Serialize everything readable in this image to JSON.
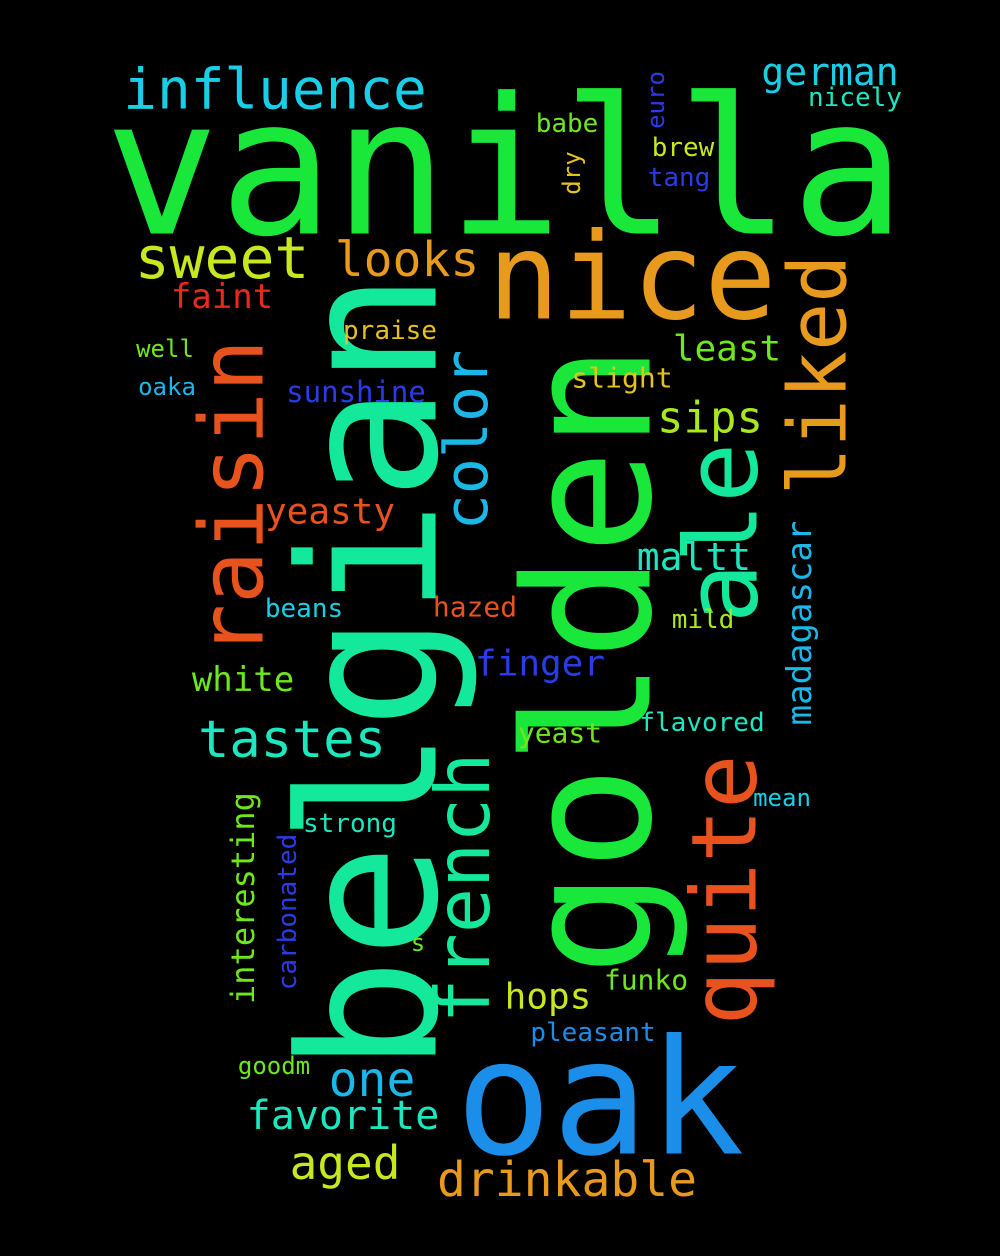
{
  "palette": {
    "green": "#19e83a",
    "mint": "#14e89a",
    "orange": "#e89a1c",
    "red_orange": "#e8521c",
    "blue": "#1a8ee8",
    "cyan": "#19cfe8",
    "sky": "#1ab8e8",
    "lime": "#a8e81c",
    "yellow_green": "#c6e81c",
    "yellow": "#e8c21c",
    "royal": "#2a3be8",
    "red": "#e82a1c",
    "teal": "#1ce8c0",
    "light_green": "#6ee81c"
  },
  "words": [
    {
      "text": "vanilla",
      "color": "green"
    },
    {
      "text": "belgian",
      "color": "mint"
    },
    {
      "text": "golden",
      "color": "green"
    },
    {
      "text": "oak",
      "color": "blue"
    },
    {
      "text": "nice",
      "color": "orange"
    },
    {
      "text": "ale",
      "color": "mint"
    },
    {
      "text": "quite",
      "color": "red_orange"
    },
    {
      "text": "raisin",
      "color": "red_orange"
    },
    {
      "text": "liked",
      "color": "orange"
    },
    {
      "text": "french",
      "color": "mint"
    },
    {
      "text": "color",
      "color": "sky"
    },
    {
      "text": "influence",
      "color": "cyan"
    },
    {
      "text": "sweet",
      "color": "yellow_green"
    },
    {
      "text": "looks",
      "color": "orange"
    },
    {
      "text": "tastes",
      "color": "teal"
    },
    {
      "text": "drinkable",
      "color": "orange"
    },
    {
      "text": "one",
      "color": "sky"
    },
    {
      "text": "aged",
      "color": "yellow_green"
    },
    {
      "text": "favorite",
      "color": "teal"
    },
    {
      "text": "sips",
      "color": "lime"
    },
    {
      "text": "german",
      "color": "cyan"
    },
    {
      "text": "maltt",
      "color": "teal"
    },
    {
      "text": "madagascar",
      "color": "sky"
    },
    {
      "text": "finger",
      "color": "royal"
    },
    {
      "text": "white",
      "color": "light_green"
    },
    {
      "text": "yeasty",
      "color": "red_orange"
    },
    {
      "text": "hops",
      "color": "yellow_green"
    },
    {
      "text": "least",
      "color": "light_green"
    },
    {
      "text": "faint",
      "color": "red"
    },
    {
      "text": "interesting",
      "color": "light_green"
    },
    {
      "text": "sunshine",
      "color": "royal"
    },
    {
      "text": "carbonated",
      "color": "royal"
    },
    {
      "text": "praise",
      "color": "yellow"
    },
    {
      "text": "slight",
      "color": "yellow"
    },
    {
      "text": "hazed",
      "color": "red_orange"
    },
    {
      "text": "strong",
      "color": "teal"
    },
    {
      "text": "flavored",
      "color": "teal"
    },
    {
      "text": "yeast",
      "color": "light_green"
    },
    {
      "text": "pleasant",
      "color": "blue"
    },
    {
      "text": "beans",
      "color": "cyan"
    },
    {
      "text": "mild",
      "color": "lime"
    },
    {
      "text": "funko",
      "color": "light_green"
    },
    {
      "text": "nicely",
      "color": "teal"
    },
    {
      "text": "babe",
      "color": "light_green"
    },
    {
      "text": "euro",
      "color": "royal"
    },
    {
      "text": "brew",
      "color": "yellow_green"
    },
    {
      "text": "tang",
      "color": "royal"
    },
    {
      "text": "dry",
      "color": "yellow"
    },
    {
      "text": "well",
      "color": "light_green"
    },
    {
      "text": "oaka",
      "color": "sky"
    },
    {
      "text": "mean",
      "color": "cyan"
    },
    {
      "text": "goodm",
      "color": "light_green"
    },
    {
      "text": "s",
      "color": "light_green"
    }
  ]
}
